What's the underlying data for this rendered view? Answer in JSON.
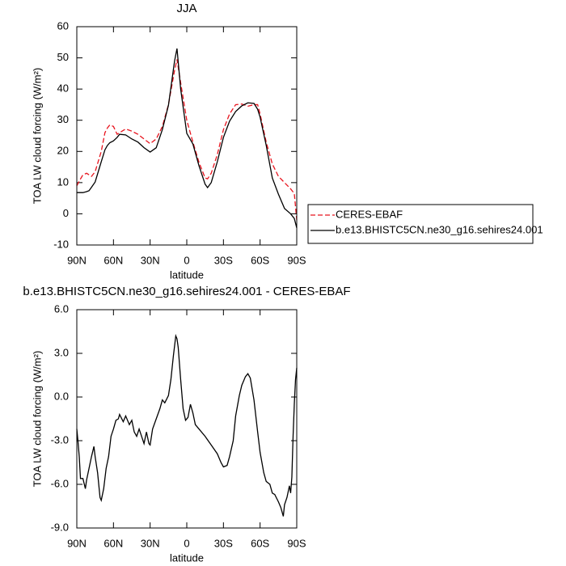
{
  "chart_data": [
    {
      "type": "line",
      "title": "JJA",
      "xlabel": "latitude",
      "ylabel": "TOA LW cloud forcing (W/m²)",
      "x": [
        90,
        88,
        85,
        82,
        80,
        78,
        75,
        70,
        67,
        65,
        63,
        60,
        57,
        55,
        50,
        45,
        40,
        35,
        30,
        25,
        20,
        15,
        10,
        8,
        5,
        0,
        -5,
        -10,
        -15,
        -17,
        -20,
        -25,
        -30,
        -35,
        -40,
        -45,
        -50,
        -55,
        -58,
        -60,
        -65,
        -70,
        -75,
        -80,
        -85,
        -88,
        -90
      ],
      "series": [
        {
          "name": "CERES-EBAF",
          "color": "#e8141e",
          "linestyle": "dashed",
          "values": [
            9,
            10.5,
            12.5,
            13,
            12.5,
            12,
            13.5,
            20,
            26,
            27.5,
            28.5,
            28,
            25.5,
            26,
            27.2,
            26.5,
            25.5,
            24,
            22.5,
            24,
            28,
            35,
            46,
            49.5,
            42,
            30,
            23,
            16.5,
            11.5,
            11.2,
            13,
            19,
            27,
            32,
            35,
            35.2,
            34.5,
            35,
            35,
            32,
            23,
            16,
            12,
            10,
            8,
            6.5,
            -2
          ]
        },
        {
          "name": "b.e13.BHISTC5CN.ne30_g16.sehires24.001",
          "color": "#000000",
          "linestyle": "solid",
          "values": [
            6.8,
            6.8,
            6.8,
            7.1,
            7.4,
            8.5,
            10.2,
            16.7,
            20.5,
            21.9,
            22.8,
            23.4,
            24.5,
            25.5,
            25.3,
            24,
            23,
            21.2,
            19.8,
            21.2,
            27,
            34.8,
            49,
            53,
            40,
            25.8,
            22.4,
            15.4,
            9.5,
            8.4,
            10,
            16.7,
            24.5,
            29.7,
            32.8,
            34.6,
            35.6,
            35.4,
            33.5,
            31,
            22,
            11.5,
            6.3,
            1.7,
            0,
            -1.5,
            -4.5
          ]
        }
      ],
      "xlim": [
        90,
        -90
      ],
      "xticks": [
        {
          "value": 90,
          "label": "90N"
        },
        {
          "value": 60,
          "label": "60N"
        },
        {
          "value": 30,
          "label": "30N"
        },
        0,
        {
          "value": -30,
          "label": "30S"
        },
        {
          "value": -60,
          "label": "60S"
        },
        {
          "value": -90,
          "label": "90S"
        }
      ],
      "ylim": [
        -10,
        60
      ],
      "yticks": [
        -10,
        0,
        10,
        20,
        30,
        40,
        50,
        60
      ],
      "legend": "right"
    },
    {
      "type": "line",
      "title": "b.e13.BHISTC5CN.ne30_g16.sehires24.001 - CERES-EBAF",
      "xlabel": "latitude",
      "ylabel": "TOA LW cloud forcing (W/m²)",
      "x": [
        90,
        89,
        88,
        87,
        85,
        83,
        82,
        80,
        78,
        76,
        75,
        73,
        71,
        70,
        68,
        66,
        64,
        62,
        60,
        58,
        56,
        55,
        52,
        50,
        47,
        45,
        43,
        41,
        39,
        37,
        35,
        33,
        31,
        30,
        28,
        25,
        22,
        20,
        18,
        15,
        13,
        11,
        9,
        8,
        7,
        5,
        3,
        1,
        -1,
        -3,
        -5,
        -7,
        -10,
        -15,
        -20,
        -25,
        -28,
        -30,
        -33,
        -35,
        -38,
        -40,
        -43,
        -45,
        -48,
        -50,
        -52,
        -55,
        -58,
        -60,
        -63,
        -65,
        -68,
        -70,
        -72,
        -75,
        -77,
        -79,
        -80,
        -82,
        -84,
        -85,
        -86,
        -87,
        -88,
        -89,
        -90
      ],
      "series": [
        {
          "color": "#000000",
          "linestyle": "solid",
          "values": [
            -2.2,
            -3.1,
            -4.1,
            -5.6,
            -5.6,
            -6.3,
            -5.7,
            -4.9,
            -4.1,
            -3.4,
            -4.1,
            -5.2,
            -6.9,
            -7.1,
            -6.3,
            -4.9,
            -4.1,
            -2.7,
            -2.2,
            -1.6,
            -1.5,
            -1.2,
            -1.7,
            -1.3,
            -1.9,
            -1.6,
            -2.4,
            -2.7,
            -2.2,
            -2.7,
            -3.2,
            -2.4,
            -3.2,
            -3.3,
            -2.2,
            -1.5,
            -0.8,
            -0.2,
            -0.4,
            0.1,
            1.2,
            2.8,
            4.2,
            4.0,
            3.4,
            1.2,
            -0.8,
            -1.6,
            -1.4,
            -0.5,
            -1.1,
            -1.9,
            -2.2,
            -2.7,
            -3.3,
            -3.9,
            -4.5,
            -4.8,
            -4.7,
            -4.1,
            -3.0,
            -1.3,
            0.1,
            0.8,
            1.4,
            1.6,
            1.3,
            -0.2,
            -2.4,
            -3.8,
            -5.2,
            -5.8,
            -6.0,
            -6.6,
            -6.7,
            -7.2,
            -7.6,
            -8.2,
            -7.4,
            -6.9,
            -6.1,
            -6.6,
            -5.5,
            -2.7,
            -0.5,
            1.2,
            2.0
          ]
        }
      ],
      "xlim": [
        90,
        -90
      ],
      "xticks": [
        {
          "value": 90,
          "label": "90N"
        },
        {
          "value": 60,
          "label": "60N"
        },
        {
          "value": 30,
          "label": "30N"
        },
        0,
        {
          "value": -30,
          "label": "30S"
        },
        {
          "value": -60,
          "label": "60S"
        },
        {
          "value": -90,
          "label": "90S"
        }
      ],
      "ylim": [
        -9,
        6
      ],
      "yticks": [
        {
          "value": -9,
          "label": "-9.0"
        },
        {
          "value": -6,
          "label": "-6.0"
        },
        {
          "value": -3,
          "label": "-3.0"
        },
        {
          "value": 0,
          "label": "0.0"
        },
        {
          "value": 3,
          "label": "3.0"
        },
        {
          "value": 6,
          "label": "6.0"
        }
      ]
    }
  ]
}
